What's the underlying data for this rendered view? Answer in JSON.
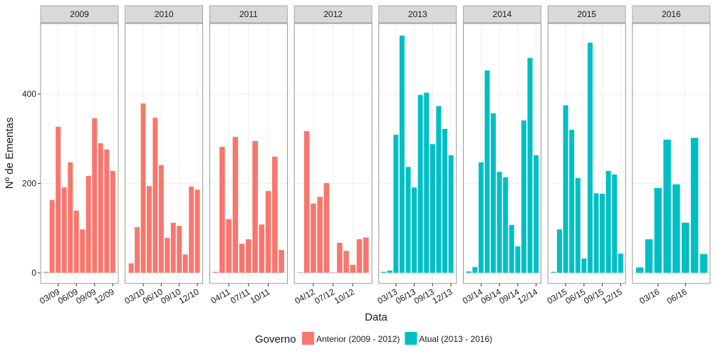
{
  "ylabel": "Nº de Ementas",
  "xlabel": "Data",
  "ylim": [
    -24,
    558
  ],
  "yticks": [
    0,
    200,
    400
  ],
  "grid": true,
  "legend": {
    "title": "Governo",
    "entries": [
      {
        "name": "Anterior (2009 - 2012)",
        "color": "#f8766d"
      },
      {
        "name": "Atual (2013 - 2016)",
        "color": "#00bfc4"
      }
    ]
  },
  "chart_data": [
    {
      "type": "bar",
      "title": "2009",
      "color": "#f8766d",
      "x": [
        1,
        2,
        3,
        4,
        5,
        6,
        7,
        8,
        9,
        10,
        11,
        12
      ],
      "values": [
        2,
        163,
        327,
        191,
        247,
        139,
        97,
        217,
        346,
        290,
        276,
        228
      ],
      "xlim": [
        0.1,
        12.9
      ],
      "xticks": [
        {
          "value": 3,
          "label": "03/09"
        },
        {
          "value": 6,
          "label": "06/09"
        },
        {
          "value": 9,
          "label": "09/09"
        },
        {
          "value": 12,
          "label": "12/09"
        }
      ]
    },
    {
      "type": "bar",
      "title": "2010",
      "color": "#f8766d",
      "x": [
        1,
        2,
        3,
        4,
        5,
        6,
        7,
        8,
        9,
        10,
        11,
        12
      ],
      "values": [
        21,
        102,
        379,
        194,
        347,
        241,
        78,
        112,
        105,
        41,
        193,
        186
      ],
      "xlim": [
        0,
        12.9
      ],
      "xticks": [
        {
          "value": 3,
          "label": "03/10"
        },
        {
          "value": 6,
          "label": "06/10"
        },
        {
          "value": 9,
          "label": "09/10"
        },
        {
          "value": 12,
          "label": "12/10"
        }
      ]
    },
    {
      "type": "bar",
      "title": "2011",
      "color": "#f8766d",
      "x": [
        2,
        3,
        4,
        5,
        6,
        7,
        8,
        9,
        10,
        11,
        12
      ],
      "values": [
        2,
        282,
        120,
        304,
        65,
        75,
        295,
        108,
        183,
        260,
        51
      ],
      "xlim": [
        1.1,
        12.9
      ],
      "xticks": [
        {
          "value": 4,
          "label": "04/11"
        },
        {
          "value": 7,
          "label": "07/11"
        },
        {
          "value": 10,
          "label": "10/11"
        }
      ]
    },
    {
      "type": "bar",
      "title": "2012",
      "color": "#f8766d",
      "x": [
        2,
        3,
        4,
        5,
        6,
        7,
        8,
        9,
        10,
        11,
        12
      ],
      "values": [
        1,
        317,
        155,
        170,
        201,
        1,
        67,
        49,
        18,
        75,
        79
      ],
      "xlim": [
        1.1,
        12.9
      ],
      "xticks": [
        {
          "value": 4,
          "label": "04/12"
        },
        {
          "value": 7,
          "label": "07/12"
        },
        {
          "value": 10,
          "label": "10/12"
        }
      ]
    },
    {
      "type": "bar",
      "title": "2013",
      "color": "#00bfc4",
      "x": [
        1,
        2,
        3,
        4,
        5,
        6,
        7,
        8,
        9,
        10,
        11,
        12
      ],
      "values": [
        2,
        5,
        309,
        531,
        237,
        191,
        398,
        403,
        288,
        373,
        322,
        263
      ],
      "xlim": [
        0.2,
        12.9
      ],
      "xticks": [
        {
          "value": 3,
          "label": "03/13"
        },
        {
          "value": 6,
          "label": "06/13"
        },
        {
          "value": 9,
          "label": "09/13"
        },
        {
          "value": 12,
          "label": "12/13"
        }
      ]
    },
    {
      "type": "bar",
      "title": "2014",
      "color": "#00bfc4",
      "x": [
        1,
        2,
        3,
        4,
        5,
        6,
        7,
        8,
        9,
        10,
        11,
        12
      ],
      "values": [
        3,
        13,
        247,
        453,
        357,
        226,
        214,
        107,
        59,
        341,
        481,
        263
      ],
      "xlim": [
        0.1,
        12.8
      ],
      "xticks": [
        {
          "value": 3,
          "label": "03/14"
        },
        {
          "value": 6,
          "label": "06/14"
        },
        {
          "value": 9,
          "label": "09/14"
        },
        {
          "value": 12,
          "label": "12/14"
        }
      ]
    },
    {
      "type": "bar",
      "title": "2015",
      "color": "#00bfc4",
      "x": [
        1,
        2,
        3,
        4,
        5,
        6,
        7,
        8,
        9,
        10,
        11,
        12
      ],
      "values": [
        2,
        97,
        375,
        320,
        212,
        32,
        515,
        178,
        177,
        228,
        220,
        43
      ],
      "xlim": [
        0.1,
        12.8
      ],
      "xticks": [
        {
          "value": 3,
          "label": "03/15"
        },
        {
          "value": 6,
          "label": "06/15"
        },
        {
          "value": 9,
          "label": "09/15"
        },
        {
          "value": 12,
          "label": "12/15"
        }
      ]
    },
    {
      "type": "bar",
      "title": "2016",
      "color": "#00bfc4",
      "x": [
        1,
        2,
        3,
        4,
        5,
        6,
        7,
        8
      ],
      "values": [
        12,
        75,
        190,
        298,
        198,
        112,
        302,
        42
      ],
      "xlim": [
        0.2,
        8.7
      ],
      "xticks": [
        {
          "value": 3,
          "label": "03/16"
        },
        {
          "value": 6,
          "label": "06/16"
        }
      ]
    }
  ]
}
